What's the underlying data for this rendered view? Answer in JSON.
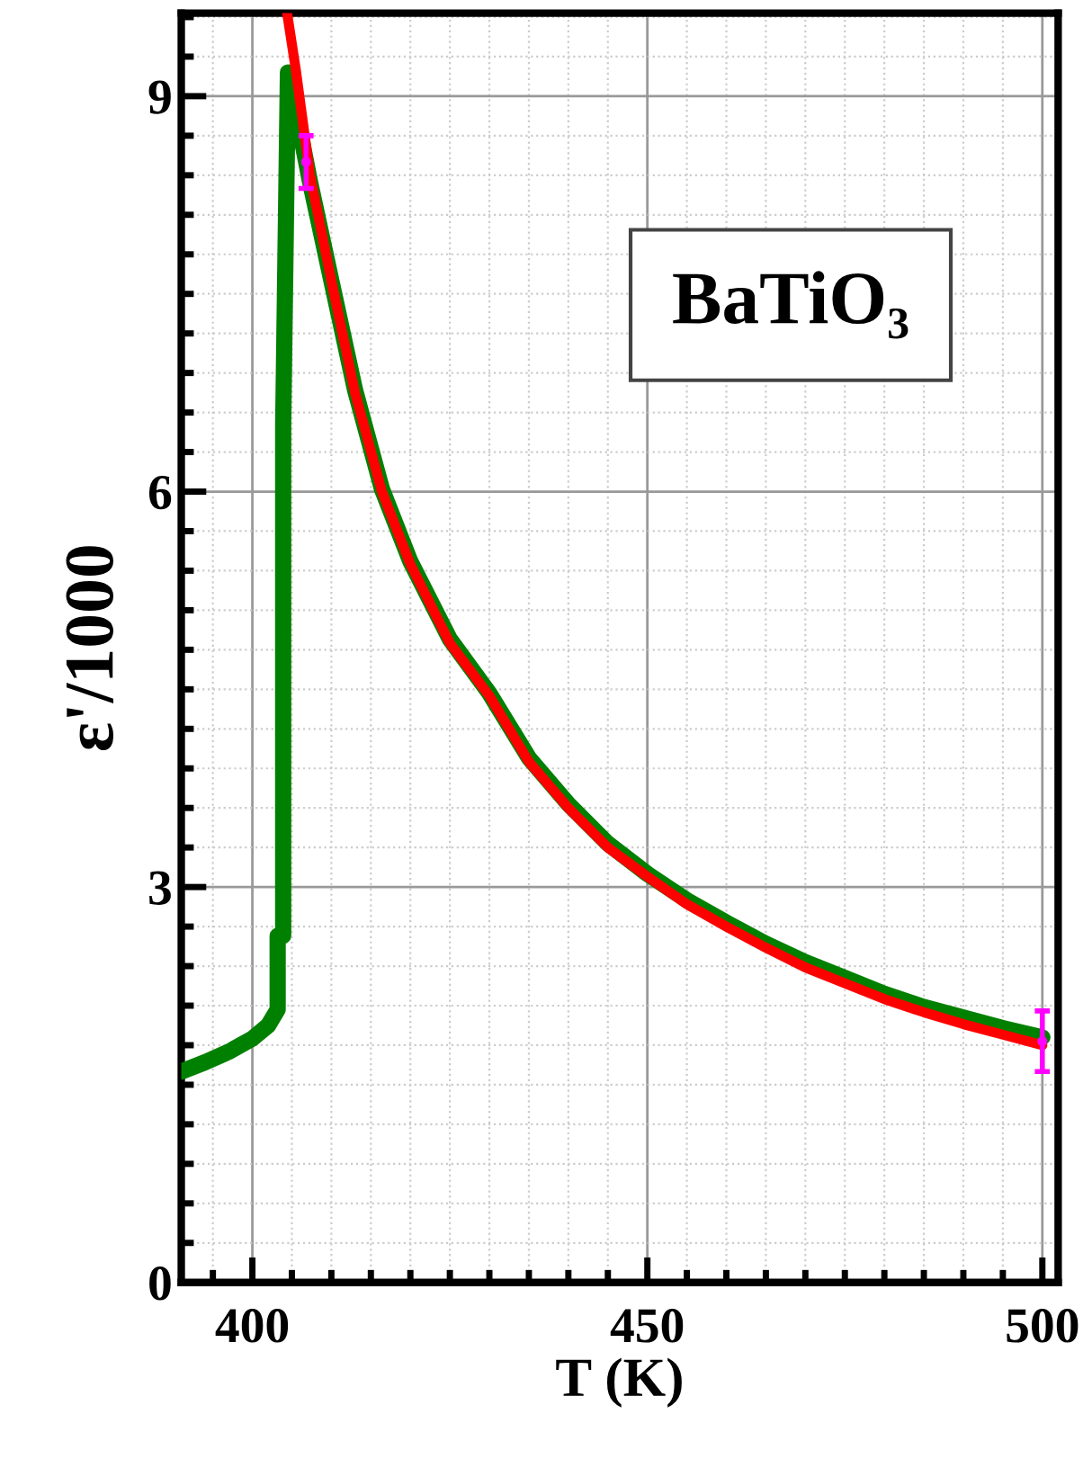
{
  "chart_data": {
    "type": "line",
    "xlabel": "T (K)",
    "ylabel": "ε'/1000",
    "xlim": [
      391,
      502
    ],
    "ylim": [
      0,
      9.63
    ],
    "xticks": [
      {
        "value": 395,
        "label": null
      },
      400,
      {
        "value": 405,
        "label": null
      },
      {
        "value": 410,
        "label": null
      },
      {
        "value": 415,
        "label": null
      },
      {
        "value": 420,
        "label": null
      },
      {
        "value": 425,
        "label": null
      },
      {
        "value": 430,
        "label": null
      },
      {
        "value": 435,
        "label": null
      },
      {
        "value": 440,
        "label": null
      },
      {
        "value": 445,
        "label": null
      },
      450,
      {
        "value": 455,
        "label": null
      },
      {
        "value": 460,
        "label": null
      },
      {
        "value": 465,
        "label": null
      },
      {
        "value": 470,
        "label": null
      },
      {
        "value": 475,
        "label": null
      },
      {
        "value": 480,
        "label": null
      },
      {
        "value": 485,
        "label": null
      },
      {
        "value": 490,
        "label": null
      },
      {
        "value": 495,
        "label": null
      },
      500
    ],
    "yticks": [
      0,
      {
        "value": 0.3,
        "label": null
      },
      {
        "value": 0.6,
        "label": null
      },
      {
        "value": 0.9,
        "label": null
      },
      {
        "value": 1.2,
        "label": null
      },
      {
        "value": 1.5,
        "label": null
      },
      {
        "value": 1.8,
        "label": null
      },
      {
        "value": 2.1,
        "label": null
      },
      {
        "value": 2.4,
        "label": null
      },
      {
        "value": 2.7,
        "label": null
      },
      3,
      {
        "value": 3.3,
        "label": null
      },
      {
        "value": 3.6,
        "label": null
      },
      {
        "value": 3.9,
        "label": null
      },
      {
        "value": 4.2,
        "label": null
      },
      {
        "value": 4.5,
        "label": null
      },
      {
        "value": 4.8,
        "label": null
      },
      {
        "value": 5.1,
        "label": null
      },
      {
        "value": 5.4,
        "label": null
      },
      {
        "value": 5.7,
        "label": null
      },
      6,
      {
        "value": 6.3,
        "label": null
      },
      {
        "value": 6.6,
        "label": null
      },
      {
        "value": 6.9,
        "label": null
      },
      {
        "value": 7.2,
        "label": null
      },
      {
        "value": 7.5,
        "label": null
      },
      {
        "value": 7.8,
        "label": null
      },
      {
        "value": 8.1,
        "label": null
      },
      {
        "value": 8.4,
        "label": null
      },
      {
        "value": 8.7,
        "label": null
      },
      9,
      {
        "value": 9.3,
        "label": null
      },
      {
        "value": 9.6,
        "label": null
      }
    ],
    "grid": true,
    "marker": "none",
    "line_style": "solid",
    "annotations": [
      "BaTiO₃"
    ],
    "series": [
      {
        "color": "#008000",
        "x": [
          391,
          394,
          397,
          400,
          402,
          403.2,
          403.2,
          403.9,
          403.9,
          404.5,
          405.5,
          407.3,
          410,
          413,
          416.4,
          420,
          425,
          430,
          435,
          440,
          445,
          450,
          455,
          460,
          465,
          470,
          475,
          480,
          485,
          490,
          495,
          500
        ],
        "values": [
          1.6,
          1.67,
          1.75,
          1.85,
          1.95,
          2.07,
          2.63,
          2.63,
          6.5,
          9.18,
          8.9,
          8.35,
          7.6,
          6.77,
          6.02,
          5.47,
          4.88,
          4.47,
          3.98,
          3.63,
          3.33,
          3.1,
          2.9,
          2.73,
          2.57,
          2.43,
          2.31,
          2.19,
          2.09,
          2.01,
          1.93,
          1.86
        ]
      },
      {
        "color": "#ff0000",
        "x": [
          404.4,
          405.5,
          407.3,
          410,
          413,
          416.4,
          420,
          425,
          430,
          435,
          440,
          445,
          450,
          455,
          460,
          465,
          470,
          475,
          480,
          485,
          490,
          495,
          500
        ],
        "values": [
          9.63,
          9.2,
          8.4,
          7.6,
          6.75,
          6.0,
          5.45,
          4.85,
          4.45,
          3.95,
          3.6,
          3.3,
          3.08,
          2.87,
          2.7,
          2.54,
          2.39,
          2.27,
          2.15,
          2.05,
          1.96,
          1.88,
          1.8
        ]
      },
      {
        "type": "scatter",
        "marker": "circle",
        "color": "#ff00ff",
        "x": [
          406.8,
          500
        ],
        "values": [
          8.5,
          1.83
        ],
        "errors": [
          0.2,
          0.23
        ]
      }
    ]
  }
}
